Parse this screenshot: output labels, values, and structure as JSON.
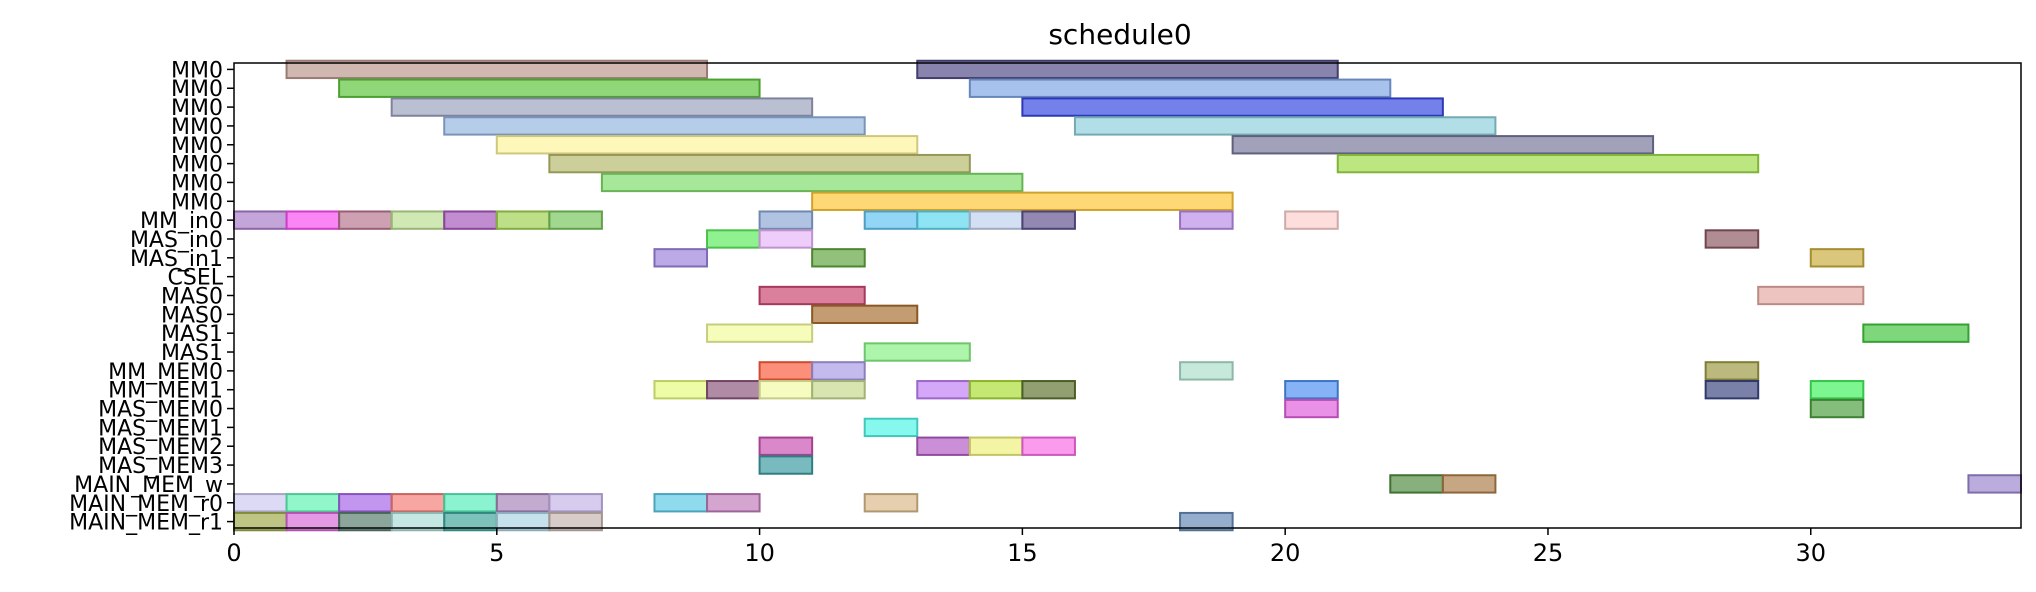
{
  "chart_data": {
    "type": "gantt",
    "title": "schedule0",
    "xlim": [
      0,
      34
    ],
    "x_ticks": [
      0,
      5,
      10,
      15,
      20,
      25,
      30
    ],
    "grid": false,
    "legend": "none",
    "rows": [
      "MM0",
      "MM0",
      "MM0",
      "MM0",
      "MM0",
      "MM0",
      "MM0",
      "MM0",
      "MM_in0",
      "MAS_in0",
      "MAS_in1",
      "CSEL",
      "MAS0",
      "MAS0",
      "MAS1",
      "MAS1",
      "MM_MEM0",
      "MM_MEM1",
      "MAS_MEM0",
      "MAS_MEM1",
      "MAS_MEM2",
      "MAS_MEM3",
      "MAIN_MEM_w",
      "MAIN_MEM_r0",
      "MAIN_MEM_r1"
    ],
    "tasks": [
      {
        "row": 0,
        "start": 1,
        "end": 9,
        "color": "#b9968c"
      },
      {
        "row": 0,
        "start": 13,
        "end": 21,
        "color": "#4f4a86"
      },
      {
        "row": 1,
        "start": 2,
        "end": 10,
        "color": "#5cc43a"
      },
      {
        "row": 1,
        "start": 14,
        "end": 22,
        "color": "#7ea5e3"
      },
      {
        "row": 2,
        "start": 3,
        "end": 11,
        "color": "#9aa0bd"
      },
      {
        "row": 2,
        "start": 15,
        "end": 23,
        "color": "#3445e0"
      },
      {
        "row": 3,
        "start": 4,
        "end": 12,
        "color": "#93b5e0"
      },
      {
        "row": 3,
        "start": 16,
        "end": 24,
        "color": "#8ccfdb"
      },
      {
        "row": 4,
        "start": 5,
        "end": 13,
        "color": "#fdf39a"
      },
      {
        "row": 4,
        "start": 19,
        "end": 27,
        "color": "#74759a"
      },
      {
        "row": 5,
        "start": 6,
        "end": 14,
        "color": "#b5b86a"
      },
      {
        "row": 5,
        "start": 21,
        "end": 29,
        "color": "#9cdb44"
      },
      {
        "row": 6,
        "start": 7,
        "end": 15,
        "color": "#7ddc6a"
      },
      {
        "row": 7,
        "start": 11,
        "end": 19,
        "color": "#fdc634"
      },
      {
        "row": 8,
        "start": 0,
        "end": 1,
        "color": "#a77bc8"
      },
      {
        "row": 8,
        "start": 1,
        "end": 2,
        "color": "#f84cf0"
      },
      {
        "row": 8,
        "start": 2,
        "end": 3,
        "color": "#b7748e"
      },
      {
        "row": 8,
        "start": 3,
        "end": 4,
        "color": "#b9dd8f"
      },
      {
        "row": 8,
        "start": 4,
        "end": 5,
        "color": "#a555ba"
      },
      {
        "row": 8,
        "start": 5,
        "end": 6,
        "color": "#9ed04e"
      },
      {
        "row": 8,
        "start": 6,
        "end": 7,
        "color": "#76c45a"
      },
      {
        "row": 8,
        "start": 10,
        "end": 11,
        "color": "#8aa6d4"
      },
      {
        "row": 8,
        "start": 12,
        "end": 13,
        "color": "#5ec1ef"
      },
      {
        "row": 8,
        "start": 13,
        "end": 14,
        "color": "#5ad7ee"
      },
      {
        "row": 8,
        "start": 14,
        "end": 15,
        "color": "#bed0ec"
      },
      {
        "row": 8,
        "start": 15,
        "end": 16,
        "color": "#5f4f8e"
      },
      {
        "row": 8,
        "start": 18,
        "end": 19,
        "color": "#b98ae8"
      },
      {
        "row": 8,
        "start": 20,
        "end": 21,
        "color": "#fccfcd"
      },
      {
        "row": 9,
        "start": 9,
        "end": 10,
        "color": "#5cea5c"
      },
      {
        "row": 9,
        "start": 10,
        "end": 11,
        "color": "#e7b5f7"
      },
      {
        "row": 9,
        "start": 28,
        "end": 29,
        "color": "#8a5560"
      },
      {
        "row": 10,
        "start": 8,
        "end": 9,
        "color": "#9b82db"
      },
      {
        "row": 10,
        "start": 11,
        "end": 12,
        "color": "#5ea33d"
      },
      {
        "row": 10,
        "start": 30,
        "end": 31,
        "color": "#c9ac3c"
      },
      {
        "row": 12,
        "start": 10,
        "end": 12,
        "color": "#c9446f"
      },
      {
        "row": 12,
        "start": 29,
        "end": 31,
        "color": "#e5a8a1"
      },
      {
        "row": 13,
        "start": 11,
        "end": 13,
        "color": "#a76d2d"
      },
      {
        "row": 14,
        "start": 9,
        "end": 11,
        "color": "#f2fb98"
      },
      {
        "row": 14,
        "start": 31,
        "end": 33,
        "color": "#41c43c"
      },
      {
        "row": 15,
        "start": 12,
        "end": 14,
        "color": "#86f082"
      },
      {
        "row": 16,
        "start": 10,
        "end": 11,
        "color": "#fb5a3a"
      },
      {
        "row": 16,
        "start": 11,
        "end": 12,
        "color": "#a99ae6"
      },
      {
        "row": 16,
        "start": 18,
        "end": 19,
        "color": "#acdfcb"
      },
      {
        "row": 16,
        "start": 28,
        "end": 29,
        "color": "#9c9841"
      },
      {
        "row": 17,
        "start": 8,
        "end": 9,
        "color": "#e6fb7a"
      },
      {
        "row": 17,
        "start": 9,
        "end": 10,
        "color": "#8a547a"
      },
      {
        "row": 17,
        "start": 10,
        "end": 11,
        "color": "#f1f9a2"
      },
      {
        "row": 17,
        "start": 11,
        "end": 12,
        "color": "#c5d98c"
      },
      {
        "row": 17,
        "start": 13,
        "end": 14,
        "color": "#c07ef4"
      },
      {
        "row": 17,
        "start": 14,
        "end": 15,
        "color": "#a9dd32"
      },
      {
        "row": 17,
        "start": 15,
        "end": 16,
        "color": "#5e722e"
      },
      {
        "row": 17,
        "start": 20,
        "end": 21,
        "color": "#4b8ff2"
      },
      {
        "row": 17,
        "start": 28,
        "end": 29,
        "color": "#3b4580"
      },
      {
        "row": 17,
        "start": 30,
        "end": 31,
        "color": "#3ff05c"
      },
      {
        "row": 18,
        "start": 20,
        "end": 21,
        "color": "#df5ddb"
      },
      {
        "row": 18,
        "start": 30,
        "end": 31,
        "color": "#4a9d3e"
      },
      {
        "row": 19,
        "start": 12,
        "end": 13,
        "color": "#4ef4e5"
      },
      {
        "row": 20,
        "start": 10,
        "end": 11,
        "color": "#c84fb0"
      },
      {
        "row": 20,
        "start": 13,
        "end": 14,
        "color": "#b15ac4"
      },
      {
        "row": 20,
        "start": 14,
        "end": 15,
        "color": "#eef07a"
      },
      {
        "row": 20,
        "start": 15,
        "end": 16,
        "color": "#f96be6"
      },
      {
        "row": 21,
        "start": 10,
        "end": 11,
        "color": "#3a9aa0"
      },
      {
        "row": 22,
        "start": 22,
        "end": 23,
        "color": "#4e8a3e"
      },
      {
        "row": 22,
        "start": 23,
        "end": 24,
        "color": "#ad7c48"
      },
      {
        "row": 22,
        "start": 33,
        "end": 34,
        "color": "#9b84cf"
      },
      {
        "row": 23,
        "start": 0,
        "end": 1,
        "color": "#cdc8f1"
      },
      {
        "row": 23,
        "start": 1,
        "end": 2,
        "color": "#5ef2b3"
      },
      {
        "row": 23,
        "start": 2,
        "end": 3,
        "color": "#a564e6"
      },
      {
        "row": 23,
        "start": 3,
        "end": 4,
        "color": "#f37c76"
      },
      {
        "row": 23,
        "start": 4,
        "end": 5,
        "color": "#56edb9"
      },
      {
        "row": 23,
        "start": 5,
        "end": 6,
        "color": "#a682b8"
      },
      {
        "row": 23,
        "start": 6,
        "end": 7,
        "color": "#c4b3e6"
      },
      {
        "row": 23,
        "start": 8,
        "end": 9,
        "color": "#5cc8e6"
      },
      {
        "row": 23,
        "start": 9,
        "end": 10,
        "color": "#c07ab8"
      },
      {
        "row": 23,
        "start": 12,
        "end": 13,
        "color": "#d8b888"
      },
      {
        "row": 24,
        "start": 0,
        "end": 1,
        "color": "#9ea84a"
      },
      {
        "row": 24,
        "start": 1,
        "end": 2,
        "color": "#d967d6"
      },
      {
        "row": 24,
        "start": 2,
        "end": 3,
        "color": "#567c6c"
      },
      {
        "row": 24,
        "start": 3,
        "end": 4,
        "color": "#a9dcd6"
      },
      {
        "row": 24,
        "start": 4,
        "end": 5,
        "color": "#3ea59b"
      },
      {
        "row": 24,
        "start": 5,
        "end": 6,
        "color": "#a9d3e3"
      },
      {
        "row": 24,
        "start": 6,
        "end": 7,
        "color": "#c6b4b0"
      },
      {
        "row": 24,
        "start": 18,
        "end": 19,
        "color": "#6488b6"
      }
    ]
  }
}
